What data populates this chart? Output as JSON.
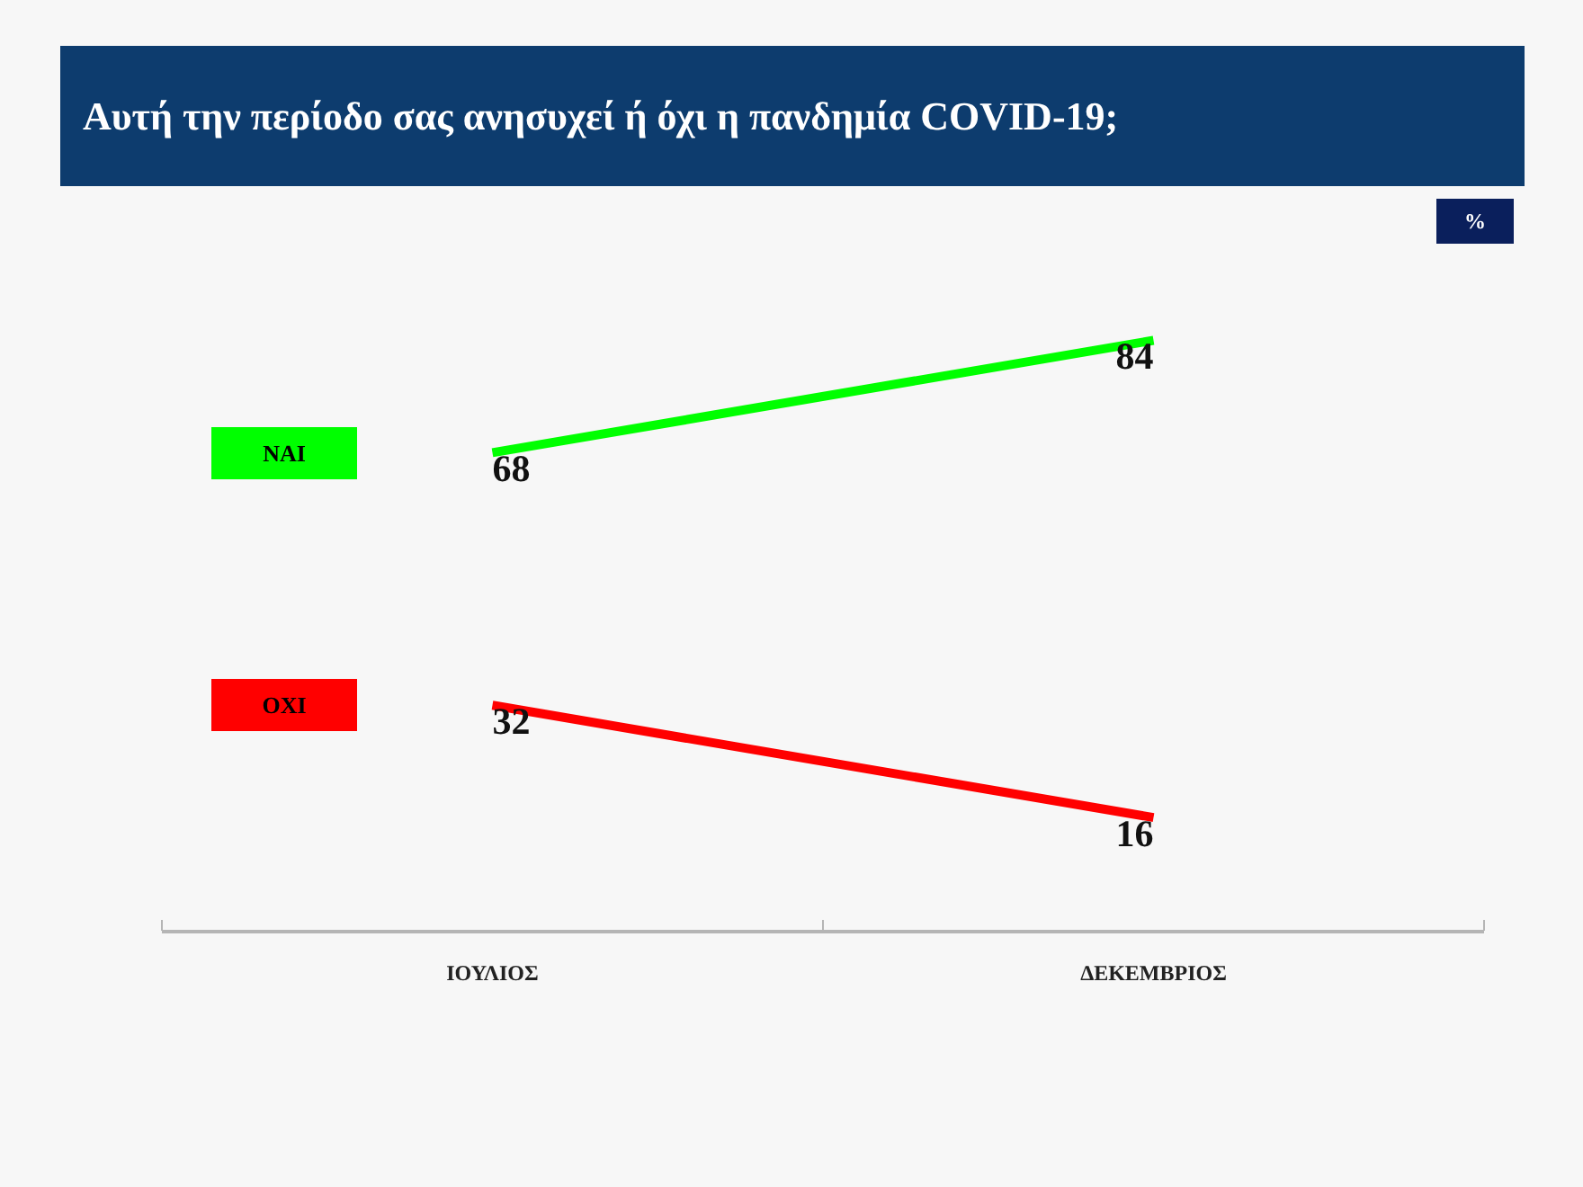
{
  "chart_data": {
    "type": "line",
    "title": "Αυτή την περίοδο σας ανησυχεί ή όχι η πανδημία COVID-19;",
    "annotations": [
      "%"
    ],
    "categories": [
      "ΙΟΥΛΙΟΣ",
      "ΔΕΚΕΜΒΡΙΟΣ"
    ],
    "series": [
      {
        "name": "ΝΑΙ",
        "color": "#00ff00",
        "values": [
          68,
          84
        ]
      },
      {
        "name": "ΟΧΙ",
        "color": "#ff0000",
        "values": [
          32,
          16
        ]
      }
    ],
    "tick_labels": "x",
    "data_labels": true,
    "legend": false,
    "grid": false,
    "marker": "none",
    "line_style": "solid"
  }
}
